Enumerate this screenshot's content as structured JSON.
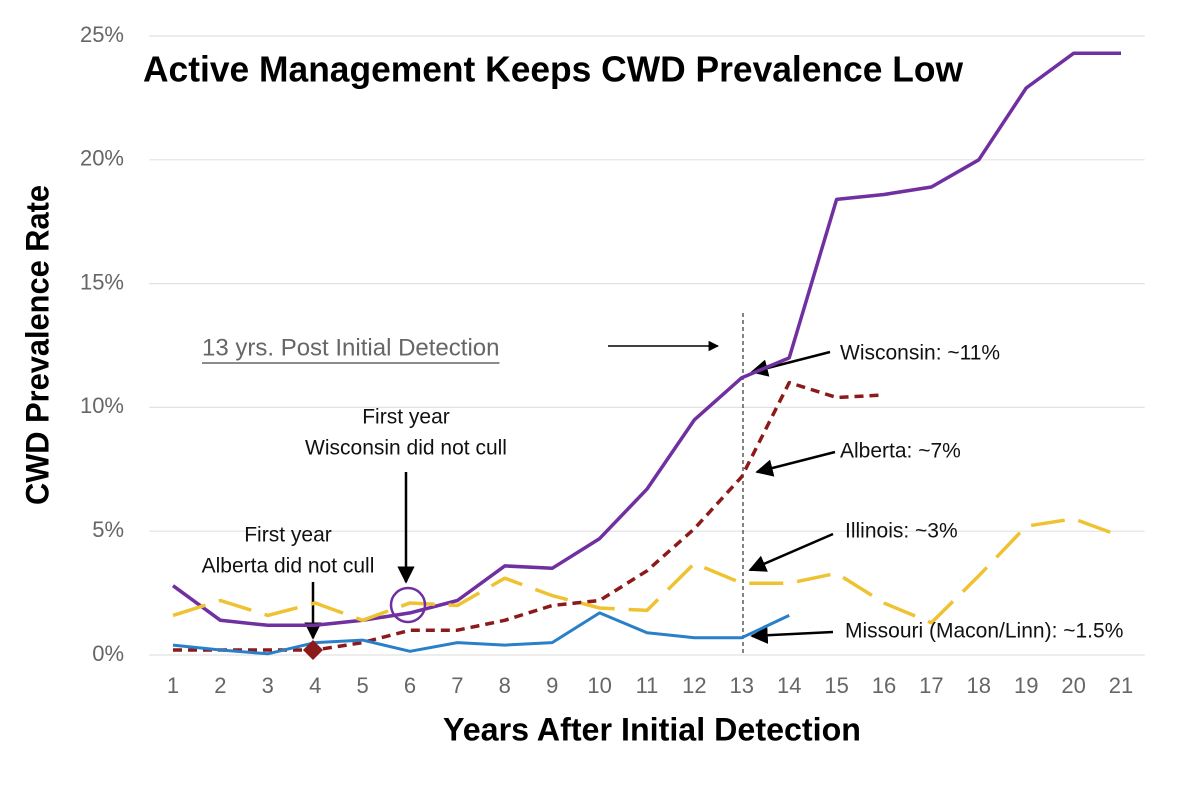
{
  "chart_data": {
    "type": "line",
    "title": "Active Management Keeps CWD Prevalence Low",
    "x_label": "Years After Initial Detection",
    "y_label": "CWD Prevalence Rate",
    "x": [
      1,
      2,
      3,
      4,
      5,
      6,
      7,
      8,
      9,
      10,
      11,
      12,
      13,
      14,
      15,
      16,
      17,
      18,
      19,
      20,
      21
    ],
    "xlim": [
      0.5,
      21.5
    ],
    "xticks": [
      1,
      2,
      3,
      4,
      5,
      6,
      7,
      8,
      9,
      10,
      11,
      12,
      13,
      14,
      15,
      16,
      17,
      18,
      19,
      20,
      21
    ],
    "ylim": [
      0,
      25
    ],
    "yticks": [
      {
        "value": 0,
        "label": "0%"
      },
      {
        "value": 5,
        "label": "5%"
      },
      {
        "value": 10,
        "label": "10%"
      },
      {
        "value": 15,
        "label": "15%"
      },
      {
        "value": 20,
        "label": "20%"
      },
      {
        "value": 25,
        "label": "25%"
      }
    ],
    "grid": true,
    "series": [
      {
        "name": "Wisconsin: ~11%",
        "color": "#7030a0",
        "dash": "solid",
        "values": [
          2.8,
          1.4,
          1.2,
          1.2,
          1.4,
          1.7,
          2.2,
          3.6,
          3.5,
          4.7,
          6.7,
          9.5,
          11.2,
          12.0,
          18.4,
          18.6,
          18.9,
          20.0,
          22.9,
          24.3,
          24.3
        ]
      },
      {
        "name": "Alberta: ~7%",
        "color": "#8b1a1a",
        "dash": "dashed",
        "values": [
          0.2,
          0.2,
          0.2,
          0.2,
          0.5,
          1.0,
          1.0,
          1.4,
          2.0,
          2.2,
          3.4,
          5.1,
          7.2,
          11.0,
          10.4,
          10.5,
          null,
          null,
          null,
          null,
          null
        ]
      },
      {
        "name": "Illinois: ~3%",
        "color": "#efc232",
        "dash": "longdash",
        "values": [
          1.6,
          2.2,
          1.6,
          2.1,
          1.4,
          2.1,
          2.0,
          3.1,
          2.4,
          1.9,
          1.8,
          3.7,
          2.9,
          2.9,
          3.3,
          2.1,
          1.3,
          3.2,
          5.2,
          5.5,
          4.8
        ]
      },
      {
        "name": "Missouri (Macon/Linn): ~1.5%",
        "color": "#2a7fc9",
        "dash": "solid",
        "values": [
          0.4,
          0.2,
          0.05,
          0.5,
          0.6,
          0.15,
          0.5,
          0.4,
          0.5,
          1.7,
          0.9,
          0.7,
          0.7,
          1.6,
          null,
          null,
          null,
          null,
          null,
          null,
          null
        ]
      }
    ],
    "annotations": [
      {
        "lines": [
          "13 yrs. Post Initial Detection"
        ]
      },
      {
        "lines": [
          "First year",
          "Wisconsin did not cull"
        ]
      },
      {
        "lines": [
          "First year",
          "Alberta did not cull"
        ]
      }
    ]
  }
}
